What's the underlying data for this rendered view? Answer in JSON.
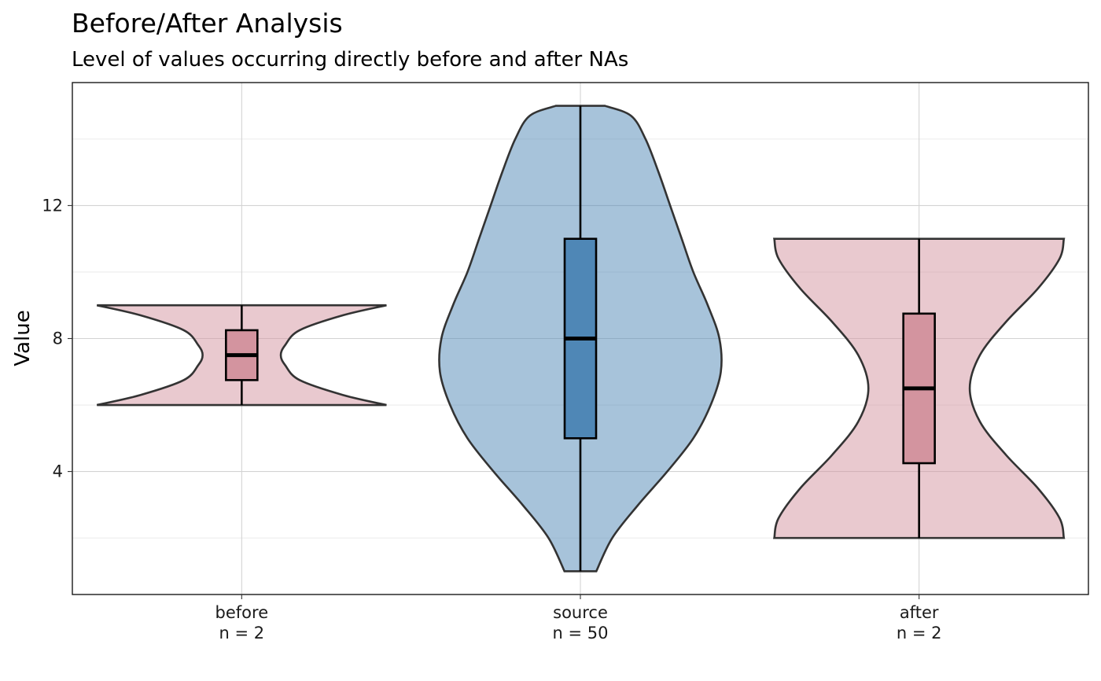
{
  "chart_data": {
    "type": "violin",
    "title": "Before/After Analysis",
    "subtitle": "Level of values occurring directly before and after NAs",
    "xlabel": "",
    "ylabel": "Value",
    "ylim": [
      0.3,
      15.7
    ],
    "y_ticks": [
      4,
      8,
      12
    ],
    "y_minor_ticks": [
      2,
      6,
      10,
      14
    ],
    "grid": true,
    "colors": {
      "before_after": "#D3949F",
      "source": "#4F87B6",
      "outline": "#333333",
      "box_edge": "#000000"
    },
    "categories": [
      {
        "name": "before",
        "n_label": "n = 2",
        "color": "#D3949F",
        "min": 6,
        "max": 9,
        "q1": 6.75,
        "median": 7.5,
        "q3": 8.25,
        "violin": [
          [
            6.0,
            1.0
          ],
          [
            6.3,
            0.7
          ],
          [
            6.75,
            0.4
          ],
          [
            7.2,
            0.3
          ],
          [
            7.5,
            0.27
          ],
          [
            7.8,
            0.3
          ],
          [
            8.25,
            0.4
          ],
          [
            8.7,
            0.7
          ],
          [
            9.0,
            1.0
          ]
        ]
      },
      {
        "name": "source",
        "n_label": "n = 50",
        "color": "#4F87B6",
        "min": 1,
        "max": 15,
        "q1": 5,
        "median": 8,
        "q3": 11,
        "violin": [
          [
            1.0,
            0.11
          ],
          [
            2.0,
            0.22
          ],
          [
            3.0,
            0.4
          ],
          [
            4.0,
            0.6
          ],
          [
            5.0,
            0.78
          ],
          [
            6.0,
            0.9
          ],
          [
            7.0,
            0.97
          ],
          [
            8.0,
            0.96
          ],
          [
            9.0,
            0.88
          ],
          [
            10.0,
            0.78
          ],
          [
            11.0,
            0.7
          ],
          [
            12.0,
            0.62
          ],
          [
            13.0,
            0.54
          ],
          [
            14.0,
            0.45
          ],
          [
            14.7,
            0.35
          ],
          [
            15.0,
            0.17
          ]
        ]
      },
      {
        "name": "after",
        "n_label": "n = 2",
        "color": "#D3949F",
        "min": 2,
        "max": 11,
        "q1": 4.25,
        "median": 6.5,
        "q3": 8.75,
        "violin": [
          [
            2.0,
            1.0
          ],
          [
            2.6,
            0.97
          ],
          [
            3.5,
            0.82
          ],
          [
            4.5,
            0.6
          ],
          [
            5.5,
            0.42
          ],
          [
            6.5,
            0.35
          ],
          [
            7.5,
            0.42
          ],
          [
            8.5,
            0.6
          ],
          [
            9.5,
            0.82
          ],
          [
            10.4,
            0.97
          ],
          [
            11.0,
            1.0
          ]
        ]
      }
    ]
  }
}
